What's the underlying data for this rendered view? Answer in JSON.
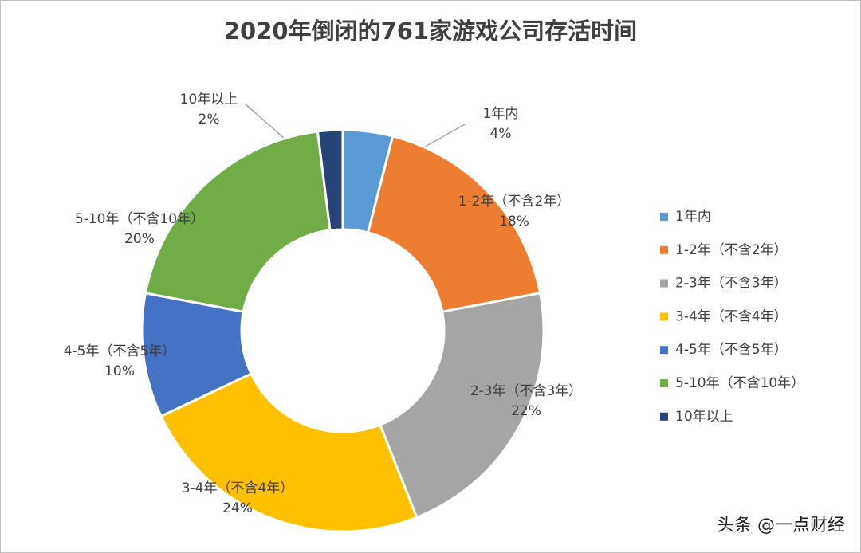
{
  "chart_data": {
    "type": "donut",
    "title": "2020年倒闭的761家游戏公司存活时间",
    "categories": [
      "1年内",
      "1-2年（不含2年）",
      "2-3年（不含3年）",
      "3-4年（不含4年）",
      "4-5年（不含5年）",
      "5-10年（不含10年）",
      "10年以上"
    ],
    "values": [
      4,
      18,
      22,
      24,
      10,
      20,
      2
    ],
    "value_labels": [
      "4%",
      "18%",
      "22%",
      "24%",
      "10%",
      "20%",
      "2%"
    ],
    "colors": [
      "#5b9bd5",
      "#ed7d31",
      "#a5a5a5",
      "#ffc000",
      "#4472c4",
      "#70ad47",
      "#264478"
    ],
    "legend": "right",
    "watermark": "头条 @一点财经"
  }
}
